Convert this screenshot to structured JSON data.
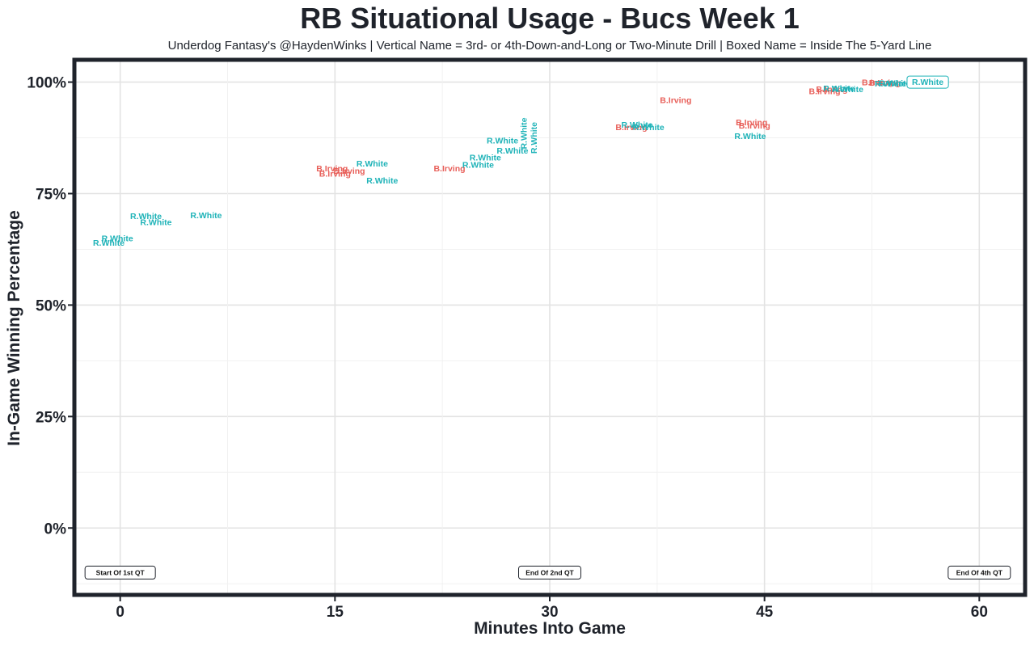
{
  "chart_data": {
    "type": "scatter",
    "title": "RB Situational Usage - Bucs Week 1",
    "subtitle": "Underdog Fantasy's @HaydenWinks | Vertical Name = 3rd- or 4th-Down-and-Long or Two-Minute Drill | Boxed Name = Inside The 5-Yard Line",
    "xlabel": "Minutes Into Game",
    "ylabel": "In-Game Winning Percentage",
    "xlim": [
      -3.2,
      63.2
    ],
    "ylim": [
      -15,
      105
    ],
    "x_ticks": [
      0,
      15,
      30,
      45,
      60
    ],
    "x_tick_labels": [
      "0",
      "15",
      "30",
      "45",
      "60"
    ],
    "y_ticks": [
      0,
      25,
      50,
      75,
      100
    ],
    "y_tick_labels": [
      "0%",
      "25%",
      "50%",
      "75%",
      "100%"
    ],
    "grid": true,
    "colors": {
      "R.White": "#1fb3b8",
      "B.Irving": "#e8605a",
      "frame": "#1f232b"
    },
    "annotations": [
      {
        "text": "Start Of 1st QT",
        "x": 0,
        "y": -10
      },
      {
        "text": "End Of 2nd QT",
        "x": 30,
        "y": -10
      },
      {
        "text": "End Of 4th QT",
        "x": 60,
        "y": -10
      }
    ],
    "points": [
      {
        "x": -0.8,
        "y": 64.0,
        "label": "R.White"
      },
      {
        "x": -0.2,
        "y": 65.0,
        "label": "R.White"
      },
      {
        "x": 1.8,
        "y": 70.0,
        "label": "R.White"
      },
      {
        "x": 2.5,
        "y": 68.7,
        "label": "R.White"
      },
      {
        "x": 6.0,
        "y": 70.2,
        "label": "R.White"
      },
      {
        "x": 14.8,
        "y": 80.7,
        "label": "B.Irving"
      },
      {
        "x": 15.0,
        "y": 79.5,
        "label": "B.Irving"
      },
      {
        "x": 16.0,
        "y": 80.2,
        "label": "B.Irving"
      },
      {
        "x": 17.6,
        "y": 81.8,
        "label": "R.White"
      },
      {
        "x": 18.3,
        "y": 78.0,
        "label": "R.White"
      },
      {
        "x": 23.0,
        "y": 80.7,
        "label": "B.Irving"
      },
      {
        "x": 25.0,
        "y": 81.5,
        "label": "R.White"
      },
      {
        "x": 25.5,
        "y": 83.2,
        "label": "R.White"
      },
      {
        "x": 26.7,
        "y": 87.0,
        "label": "R.White"
      },
      {
        "x": 27.4,
        "y": 84.7,
        "label": "R.White"
      },
      {
        "x": 28.2,
        "y": 88.5,
        "label": "R.White",
        "vertical": true
      },
      {
        "x": 28.9,
        "y": 87.5,
        "label": "R.White",
        "vertical": true
      },
      {
        "x": 35.7,
        "y": 90.0,
        "label": "B.Irving"
      },
      {
        "x": 36.1,
        "y": 90.5,
        "label": "R.White"
      },
      {
        "x": 36.9,
        "y": 90.0,
        "label": "R.White"
      },
      {
        "x": 38.8,
        "y": 96.0,
        "label": "B.Irving"
      },
      {
        "x": 44.1,
        "y": 91.0,
        "label": "B.Irving"
      },
      {
        "x": 44.3,
        "y": 90.3,
        "label": "B.Irving"
      },
      {
        "x": 44.0,
        "y": 88.0,
        "label": "R.White"
      },
      {
        "x": 49.2,
        "y": 98.0,
        "label": "B.Irving"
      },
      {
        "x": 49.7,
        "y": 98.5,
        "label": "B.Irving"
      },
      {
        "x": 50.2,
        "y": 98.7,
        "label": "R.White"
      },
      {
        "x": 50.8,
        "y": 98.5,
        "label": "R.White"
      },
      {
        "x": 52.9,
        "y": 100.0,
        "label": "B.Irving"
      },
      {
        "x": 53.4,
        "y": 99.9,
        "label": "B.Irving"
      },
      {
        "x": 54.1,
        "y": 99.8,
        "label": "R.White"
      },
      {
        "x": 53.8,
        "y": 99.7,
        "label": "R.White"
      },
      {
        "x": 56.4,
        "y": 100.0,
        "label": "R.White",
        "boxed": true
      }
    ]
  }
}
